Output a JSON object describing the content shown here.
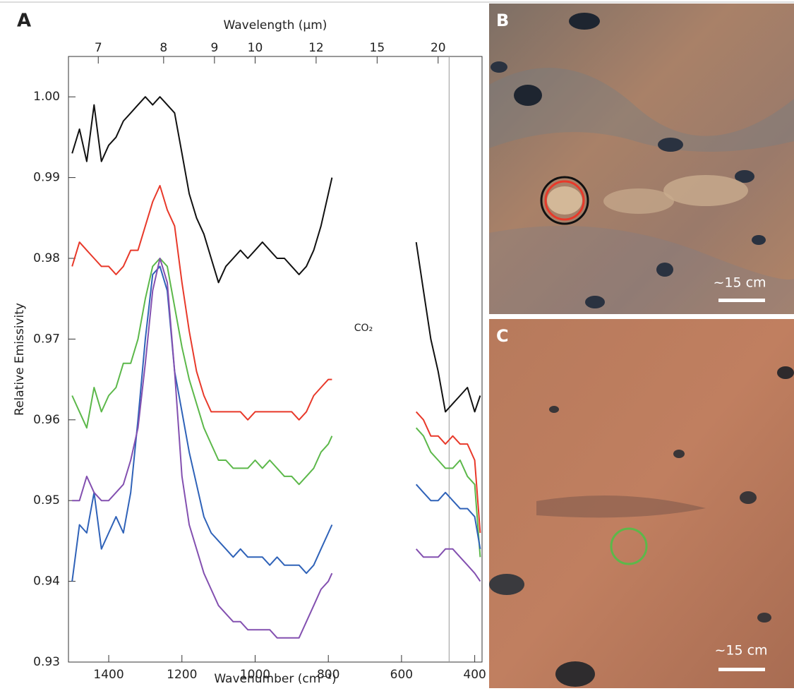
{
  "chart_data": {
    "type": "line",
    "panel_label": "A",
    "xlabel": "Wavenumber (cm⁻¹)",
    "ylabel": "Relative Emissivity",
    "x2label": "Wavelength (μm)",
    "annotation": "CO₂",
    "xlim": [
      1510,
      380
    ],
    "ylim": [
      0.93,
      1.005
    ],
    "xticks": [
      1400,
      1200,
      1000,
      800,
      600,
      400
    ],
    "x2ticks": [
      7,
      8,
      9,
      10,
      12,
      15,
      20
    ],
    "yticks": [
      0.93,
      0.94,
      0.95,
      0.96,
      0.97,
      0.98,
      0.99,
      {
        "value": 1,
        "label": "1.00"
      }
    ],
    "reference_line_x": 470,
    "x": [
      1500,
      1480,
      1460,
      1440,
      1420,
      1400,
      1380,
      1360,
      1340,
      1320,
      1300,
      1280,
      1260,
      1240,
      1220,
      1200,
      1180,
      1160,
      1140,
      1120,
      1100,
      1080,
      1060,
      1040,
      1020,
      1000,
      980,
      960,
      940,
      920,
      900,
      880,
      860,
      840,
      820,
      800,
      790,
      null,
      560,
      540,
      520,
      500,
      480,
      460,
      440,
      420,
      400,
      385
    ],
    "series": [
      {
        "color": "#111111",
        "values": [
          0.993,
          0.996,
          0.992,
          0.999,
          0.992,
          0.994,
          0.995,
          0.997,
          0.998,
          0.999,
          1.0,
          0.999,
          1.0,
          0.999,
          0.998,
          0.993,
          0.988,
          0.985,
          0.983,
          0.98,
          0.977,
          0.979,
          0.98,
          0.981,
          0.98,
          0.981,
          0.982,
          0.981,
          0.98,
          0.98,
          0.979,
          0.978,
          0.979,
          0.981,
          0.984,
          0.988,
          0.99,
          null,
          0.982,
          0.976,
          0.97,
          0.966,
          0.961,
          0.962,
          0.963,
          0.964,
          0.961,
          0.963
        ]
      },
      {
        "color": "#e8392a",
        "values": [
          0.979,
          0.982,
          0.981,
          0.98,
          0.979,
          0.979,
          0.978,
          0.979,
          0.981,
          0.981,
          0.984,
          0.987,
          0.989,
          0.986,
          0.984,
          0.977,
          0.971,
          0.966,
          0.963,
          0.961,
          0.961,
          0.961,
          0.961,
          0.961,
          0.96,
          0.961,
          0.961,
          0.961,
          0.961,
          0.961,
          0.961,
          0.96,
          0.961,
          0.963,
          0.964,
          0.965,
          0.965,
          null,
          0.961,
          0.96,
          0.958,
          0.958,
          0.957,
          0.958,
          0.957,
          0.957,
          0.955,
          0.946
        ]
      },
      {
        "color": "#5cb84a",
        "values": [
          0.963,
          0.961,
          0.959,
          0.964,
          0.961,
          0.963,
          0.964,
          0.967,
          0.967,
          0.97,
          0.975,
          0.979,
          0.98,
          0.979,
          0.974,
          0.969,
          0.965,
          0.962,
          0.959,
          0.957,
          0.955,
          0.955,
          0.954,
          0.954,
          0.954,
          0.955,
          0.954,
          0.955,
          0.954,
          0.953,
          0.953,
          0.952,
          0.953,
          0.954,
          0.956,
          0.957,
          0.958,
          null,
          0.959,
          0.958,
          0.956,
          0.955,
          0.954,
          0.954,
          0.955,
          0.953,
          0.952,
          0.943
        ]
      },
      {
        "color": "#2f62b8",
        "values": [
          0.94,
          0.947,
          0.946,
          0.951,
          0.944,
          0.946,
          0.948,
          0.946,
          0.951,
          0.96,
          0.97,
          0.978,
          0.979,
          0.976,
          0.966,
          0.961,
          0.956,
          0.952,
          0.948,
          0.946,
          0.945,
          0.944,
          0.943,
          0.944,
          0.943,
          0.943,
          0.943,
          0.942,
          0.943,
          0.942,
          0.942,
          0.942,
          0.941,
          0.942,
          0.944,
          0.946,
          0.947,
          null,
          0.952,
          0.951,
          0.95,
          0.95,
          0.951,
          0.95,
          0.949,
          0.949,
          0.948,
          0.944
        ]
      },
      {
        "color": "#8350b0",
        "values": [
          0.95,
          0.95,
          0.953,
          0.951,
          0.95,
          0.95,
          0.951,
          0.952,
          0.955,
          0.959,
          0.967,
          0.976,
          0.98,
          0.977,
          0.966,
          0.953,
          0.947,
          0.944,
          0.941,
          0.939,
          0.937,
          0.936,
          0.935,
          0.935,
          0.934,
          0.934,
          0.934,
          0.934,
          0.933,
          0.933,
          0.933,
          0.933,
          0.935,
          0.937,
          0.939,
          0.94,
          0.941,
          null,
          0.944,
          0.943,
          0.943,
          0.943,
          0.944,
          0.944,
          0.943,
          0.942,
          0.941,
          0.94
        ]
      }
    ]
  },
  "panels": [
    {
      "label": "B",
      "scale_label": "~15 cm"
    },
    {
      "label": "C",
      "scale_label": "~15 cm"
    }
  ]
}
